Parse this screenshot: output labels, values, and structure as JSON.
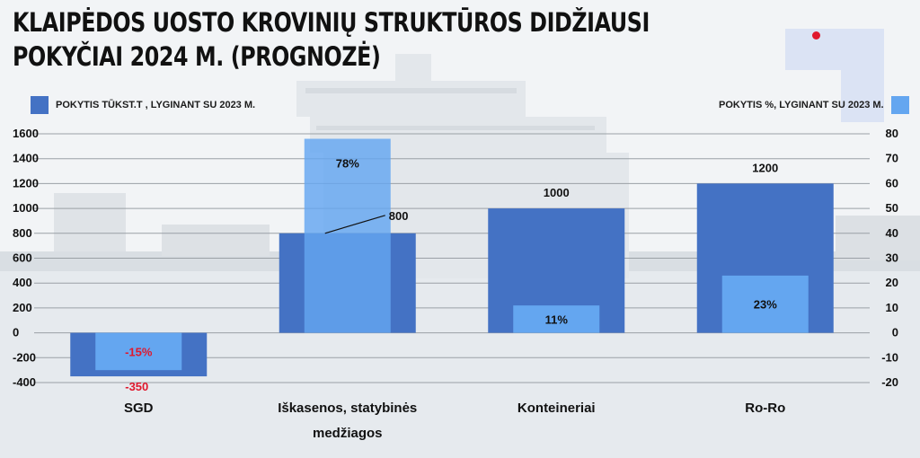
{
  "title": "KLAIPĖDOS UOSTO KROVINIŲ STRUKTŪROS DIDŽIAUSI POKYČIAI 2024 M. (PROGNOZĖ)",
  "legend": {
    "left": "POKYTIS TŪKST.T , LYGINANT SU 2023 M.",
    "right": "POKYTIS %, LYGINANT SU 2023 M."
  },
  "colors": {
    "tons": "#4472c4",
    "percent": "#64a6f0",
    "accent": "#e0182d",
    "negative_label": "#e0182d"
  },
  "chart_data": {
    "type": "bar",
    "title": "KLAIPĖDOS UOSTO KROVINIŲ STRUKTŪROS DIDŽIAUSI POKYČIAI 2024 M. (PROGNOZĖ)",
    "categories": [
      "SGD",
      "Iškasenos, statybinės medžiagos",
      "Konteineriai",
      "Ro-Ro"
    ],
    "category_lines": [
      [
        "SGD"
      ],
      [
        "Iškasenos, statybinės",
        "medžiagos"
      ],
      [
        "Konteineriai"
      ],
      [
        "Ro-Ro"
      ]
    ],
    "series": [
      {
        "name": "POKYTIS TŪKST.T , LYGINANT SU 2023 M.",
        "axis": "left",
        "values": [
          -350,
          800,
          1000,
          1200
        ],
        "labels": [
          "-350",
          "800",
          "1000",
          "1200"
        ]
      },
      {
        "name": "POKYTIS %, LYGINANT SU 2023 M.",
        "axis": "right",
        "values": [
          -15,
          78,
          11,
          23
        ],
        "labels": [
          "-15%",
          "78%",
          "11%",
          "23%"
        ]
      }
    ],
    "y_left": {
      "min": -400,
      "max": 1600,
      "step": 200,
      "ticks": [
        "-400",
        "-200",
        "0",
        "200",
        "400",
        "600",
        "800",
        "1000",
        "1200",
        "1400",
        "1600"
      ]
    },
    "y_right": {
      "min": -20,
      "max": 80,
      "step": 10,
      "ticks": [
        "-20",
        "-10",
        "0",
        "10",
        "20",
        "30",
        "40",
        "50",
        "60",
        "70",
        "80"
      ]
    },
    "grid": true,
    "legend_position": "top"
  }
}
